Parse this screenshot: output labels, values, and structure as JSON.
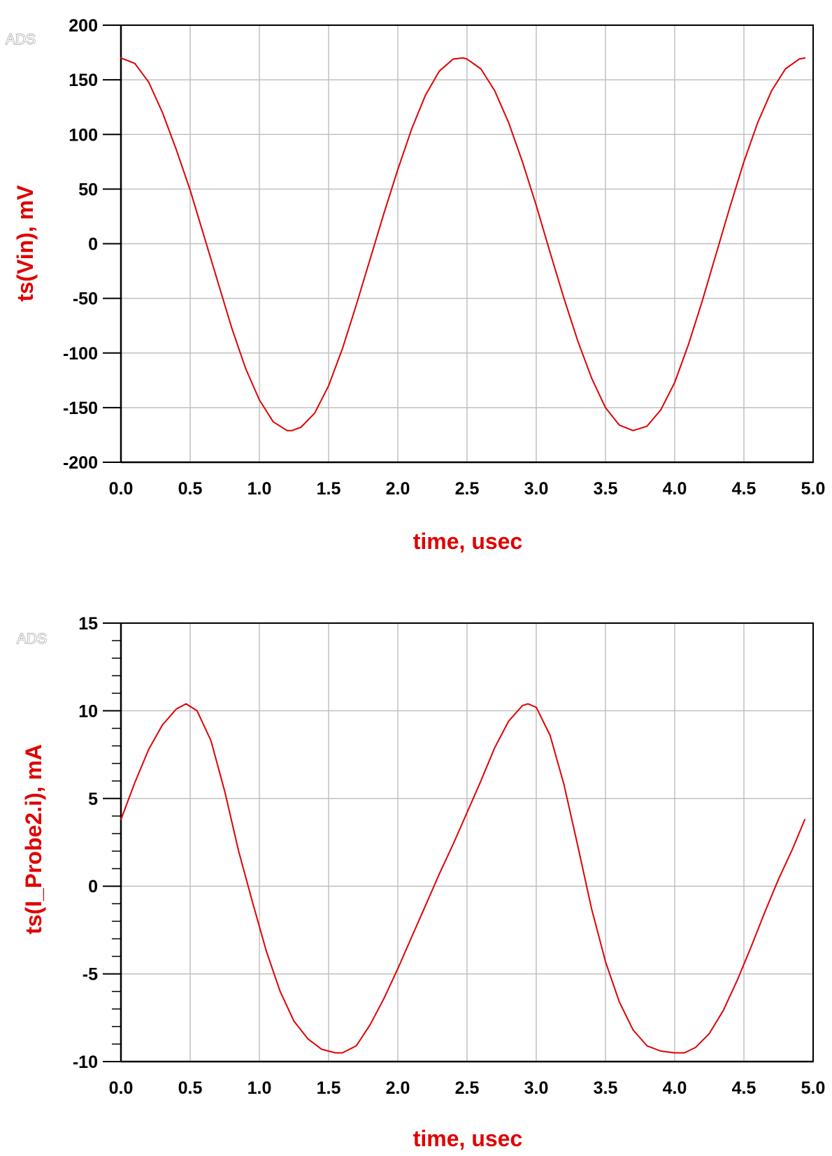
{
  "colors": {
    "trace": "#e00000",
    "label": "#e00000",
    "grid": "#c0c0c0",
    "axis": "#000000"
  },
  "chart_data": [
    {
      "type": "line",
      "watermark": "ADS",
      "xlabel": "time, usec",
      "ylabel": "ts(Vin), mV",
      "xlim": [
        0,
        5
      ],
      "ylim": [
        -200,
        200
      ],
      "x_ticks": [
        "0.0",
        "0.5",
        "1.0",
        "1.5",
        "2.0",
        "2.5",
        "3.0",
        "3.5",
        "4.0",
        "4.5",
        "5.0"
      ],
      "y_ticks": [
        "-200",
        "-150",
        "-100",
        "-50",
        "0",
        "50",
        "100",
        "150",
        "200"
      ],
      "x_tick_values": [
        0,
        0.5,
        1,
        1.5,
        2,
        2.5,
        3,
        3.5,
        4,
        4.5,
        5
      ],
      "y_tick_values": [
        -200,
        -150,
        -100,
        -50,
        0,
        50,
        100,
        150,
        200
      ],
      "minor_y_ticks": [],
      "grid": true,
      "series": [
        {
          "x": [
            0,
            0.1,
            0.2,
            0.3,
            0.4,
            0.5,
            0.6,
            0.7,
            0.8,
            0.9,
            1.0,
            1.1,
            1.2,
            1.235,
            1.3,
            1.4,
            1.5,
            1.6,
            1.7,
            1.8,
            1.9,
            2.0,
            2.1,
            2.2,
            2.3,
            2.4,
            2.47,
            2.5,
            2.6,
            2.7,
            2.8,
            2.9,
            3.0,
            3.1,
            3.2,
            3.3,
            3.4,
            3.5,
            3.6,
            3.7,
            3.8,
            3.9,
            4.0,
            4.1,
            4.2,
            4.3,
            4.4,
            4.5,
            4.6,
            4.7,
            4.8,
            4.9,
            4.94
          ],
          "y": [
            170,
            165,
            148,
            120,
            86,
            49,
            7,
            -35,
            -77,
            -114,
            -143,
            -163,
            -171,
            -171,
            -168,
            -155,
            -130,
            -96,
            -56,
            -14,
            28,
            68,
            105,
            136,
            158,
            169,
            170,
            169,
            160,
            140,
            111,
            75,
            35,
            -8,
            -50,
            -89,
            -123,
            -150,
            -166,
            -171,
            -167,
            -152,
            -127,
            -92,
            -52,
            -9,
            34,
            75,
            111,
            140,
            160,
            169,
            170
          ]
        }
      ]
    },
    {
      "type": "line",
      "watermark": "ADS",
      "xlabel": "time, usec",
      "ylabel": "ts(I_Probe2.i), mA",
      "xlim": [
        0,
        5
      ],
      "ylim": [
        -10,
        15
      ],
      "x_ticks": [
        "0.0",
        "0.5",
        "1.0",
        "1.5",
        "2.0",
        "2.5",
        "3.0",
        "3.5",
        "4.0",
        "4.5",
        "5.0"
      ],
      "y_ticks": [
        "-10",
        "-5",
        "0",
        "5",
        "10",
        "15"
      ],
      "x_tick_values": [
        0,
        0.5,
        1,
        1.5,
        2,
        2.5,
        3,
        3.5,
        4,
        4.5,
        5
      ],
      "y_tick_values": [
        -10,
        -5,
        0,
        5,
        10,
        15
      ],
      "minor_y_ticks": [
        -9,
        -8,
        -7,
        -6,
        -4,
        -3,
        -2,
        -1,
        1,
        2,
        3,
        4,
        6,
        7,
        8,
        9,
        11,
        12,
        13,
        14
      ],
      "grid": true,
      "series": [
        {
          "x": [
            0,
            0.1,
            0.2,
            0.3,
            0.4,
            0.47,
            0.55,
            0.65,
            0.75,
            0.85,
            0.95,
            1.05,
            1.15,
            1.25,
            1.35,
            1.45,
            1.55,
            1.6,
            1.7,
            1.8,
            1.9,
            2.0,
            2.1,
            2.2,
            2.3,
            2.4,
            2.5,
            2.6,
            2.7,
            2.8,
            2.9,
            2.94,
            3.0,
            3.1,
            3.2,
            3.3,
            3.4,
            3.5,
            3.6,
            3.7,
            3.8,
            3.9,
            4.0,
            4.07,
            4.15,
            4.25,
            4.35,
            4.45,
            4.55,
            4.65,
            4.75,
            4.85,
            4.94
          ],
          "y": [
            3.8,
            5.9,
            7.8,
            9.2,
            10.1,
            10.4,
            10.0,
            8.3,
            5.4,
            2.0,
            -0.9,
            -3.7,
            -6.0,
            -7.7,
            -8.7,
            -9.3,
            -9.5,
            -9.5,
            -9.1,
            -7.9,
            -6.4,
            -4.7,
            -2.9,
            -1.1,
            0.7,
            2.4,
            4.2,
            6.0,
            7.9,
            9.4,
            10.3,
            10.4,
            10.2,
            8.6,
            5.8,
            2.3,
            -1.3,
            -4.3,
            -6.6,
            -8.2,
            -9.1,
            -9.4,
            -9.5,
            -9.5,
            -9.2,
            -8.4,
            -7.1,
            -5.4,
            -3.5,
            -1.5,
            0.4,
            2.1,
            3.8
          ]
        }
      ]
    }
  ]
}
